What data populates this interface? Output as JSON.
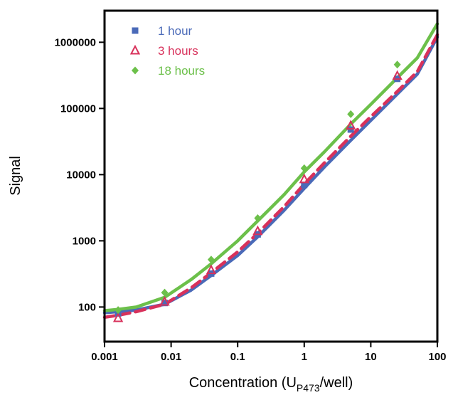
{
  "chart_data": {
    "type": "scatter",
    "xlabel_main": "Concentration (U",
    "xlabel_sub": "P473",
    "xlabel_tail": "/well)",
    "ylabel": "Signal",
    "xscale": "log",
    "yscale": "log",
    "xlim": [
      0.001,
      100
    ],
    "ylim": [
      30,
      3000000
    ],
    "grid": false,
    "legend_position": "top-left",
    "x_ticks": [
      {
        "value": 0.001,
        "label": "0.001"
      },
      {
        "value": 0.01,
        "label": "0.01"
      },
      {
        "value": 0.1,
        "label": "0.1"
      },
      {
        "value": 1,
        "label": "1"
      },
      {
        "value": 10,
        "label": "10"
      },
      {
        "value": 100,
        "label": "100"
      }
    ],
    "y_ticks": [
      {
        "value": 100,
        "label": "100"
      },
      {
        "value": 1000,
        "label": "1000"
      },
      {
        "value": 10000,
        "label": "10000"
      },
      {
        "value": 100000,
        "label": "100000"
      },
      {
        "value": 1000000,
        "label": "1000000"
      }
    ],
    "series": [
      {
        "name": "1 hour",
        "color": "#4a6ab8",
        "marker": "square",
        "line_style": "solid",
        "x": [
          0.0016,
          0.008,
          0.04,
          0.2,
          1,
          5,
          25
        ],
        "y": [
          80,
          115,
          320,
          1250,
          7000,
          48000,
          280000
        ],
        "fit_x": [
          0.001,
          0.0016,
          0.003,
          0.008,
          0.02,
          0.04,
          0.1,
          0.2,
          0.5,
          1,
          2,
          5,
          10,
          25,
          50,
          100
        ],
        "fit_y": [
          82,
          85,
          90,
          110,
          180,
          300,
          600,
          1150,
          2900,
          6200,
          13000,
          33000,
          66000,
          165000,
          330000,
          1200000
        ]
      },
      {
        "name": "3 hours",
        "color": "#d8315b",
        "marker": "triangle-open",
        "line_style": "dashed",
        "x": [
          0.0016,
          0.008,
          0.04,
          0.2,
          1,
          5,
          25
        ],
        "y": [
          68,
          120,
          360,
          1400,
          8500,
          55000,
          310000
        ],
        "fit_x": [
          0.001,
          0.0016,
          0.003,
          0.008,
          0.02,
          0.04,
          0.1,
          0.2,
          0.5,
          1,
          2,
          5,
          10,
          25,
          50,
          100
        ],
        "fit_y": [
          70,
          75,
          85,
          110,
          195,
          330,
          680,
          1300,
          3300,
          7200,
          15000,
          38000,
          75000,
          180000,
          360000,
          1300000
        ]
      },
      {
        "name": "18 hours",
        "color": "#6cc04a",
        "marker": "diamond",
        "line_style": "solid",
        "x": [
          0.0016,
          0.008,
          0.04,
          0.2,
          1,
          5,
          25
        ],
        "y": [
          90,
          165,
          520,
          2200,
          12500,
          82000,
          460000
        ],
        "fit_x": [
          0.001,
          0.0016,
          0.003,
          0.008,
          0.02,
          0.04,
          0.1,
          0.2,
          0.5,
          1,
          2,
          5,
          10,
          25,
          50,
          100
        ],
        "fit_y": [
          88,
          92,
          100,
          140,
          260,
          450,
          1000,
          2000,
          5000,
          11000,
          22000,
          58000,
          115000,
          290000,
          580000,
          1900000
        ]
      }
    ]
  }
}
